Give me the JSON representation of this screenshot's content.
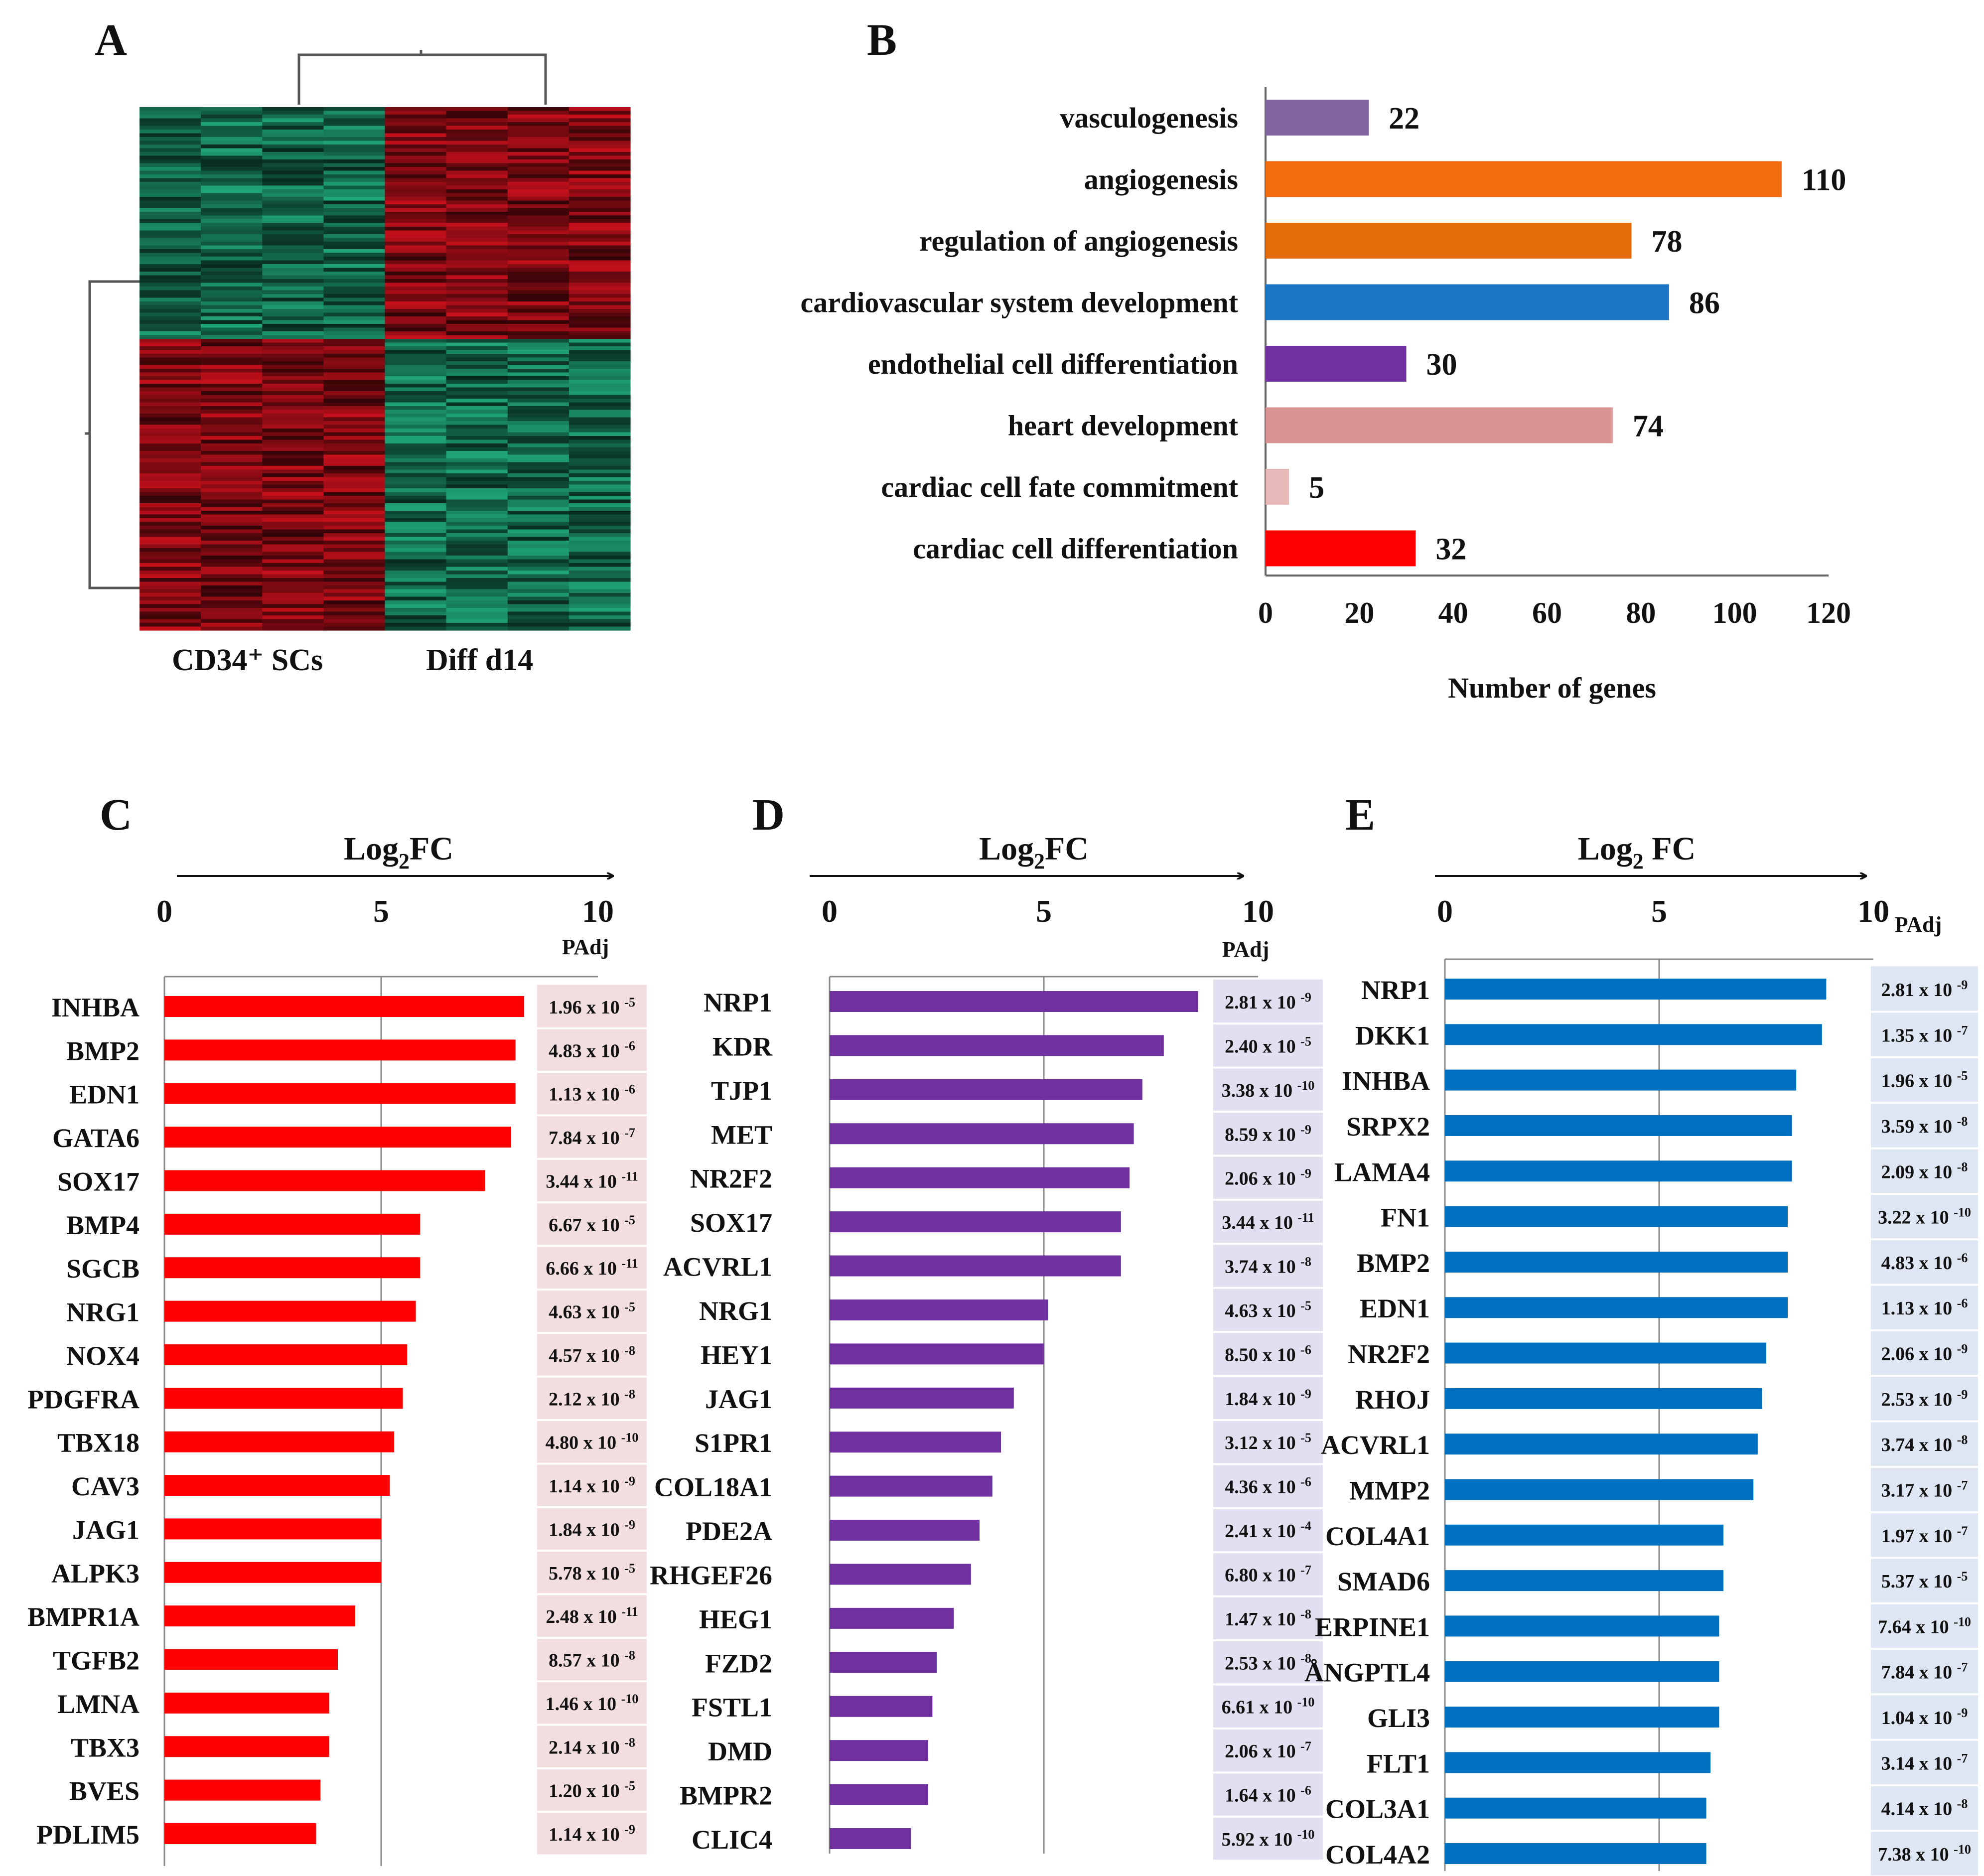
{
  "panels": {
    "A": {
      "label": "A",
      "heatmap": {
        "column_groups": [
          {
            "label": "CD34⁺ SCs",
            "color_top": "green",
            "color_bottom": "red"
          },
          {
            "label": "Diff d14",
            "color_top": "red",
            "color_bottom": "green"
          }
        ],
        "colors": {
          "red": "#c8101c",
          "green": "#1fa678",
          "dark": "#101010"
        }
      }
    },
    "B": {
      "label": "B"
    },
    "C": {
      "label": "C",
      "padj_header": "PAdj",
      "panel_bg": "#f2dede"
    },
    "D": {
      "label": "D",
      "padj_header": "PAdj",
      "panel_bg": "#e4dff0"
    },
    "E": {
      "label": "E",
      "padj_header": "PAdj",
      "panel_bg": "#dde6f2"
    }
  },
  "chart_data": [
    {
      "id": "B",
      "type": "bar",
      "orientation": "horizontal",
      "title": "",
      "categories": [
        "vasculogenesis",
        "angiogenesis",
        "regulation of angiogenesis",
        "cardiovascular system development",
        "endothelial cell differentiation",
        "heart development",
        "cardiac cell fate commitment",
        "cardiac cell differentiation"
      ],
      "values": [
        22,
        110,
        78,
        86,
        30,
        74,
        5,
        32
      ],
      "colors": [
        "#8064a2",
        "#f26b0f",
        "#e36c09",
        "#1a75c4",
        "#7030a0",
        "#d99594",
        "#e6b9b8",
        "#ff0000"
      ],
      "xlabel": "Number of genes",
      "ylabel": "",
      "xlim": [
        0,
        120
      ],
      "ticks": [
        0,
        20,
        40,
        60,
        80,
        100,
        120
      ],
      "data_labels": true
    },
    {
      "id": "C",
      "type": "bar",
      "orientation": "horizontal",
      "xlabel_main": "Log",
      "xlabel_sub": "2",
      "xlabel_tail": "FC",
      "xlim": [
        0,
        10
      ],
      "ticks": [
        0,
        5,
        10
      ],
      "color": "#ff0000",
      "categories": [
        "INHBA",
        "BMP2",
        "EDN1",
        "GATA6",
        "SOX17",
        "BMP4",
        "SGCB",
        "NRG1",
        "NOX4",
        "PDGFRA",
        "TBX18",
        "CAV3",
        "JAG1",
        "ALPK3",
        "BMPR1A",
        "TGFB2",
        "LMNA",
        "TBX3",
        "BVES",
        "PDLIM5"
      ],
      "values": [
        8.3,
        8.1,
        8.1,
        8.0,
        7.4,
        5.9,
        5.9,
        5.8,
        5.6,
        5.5,
        5.3,
        5.2,
        5.0,
        5.0,
        4.4,
        4.0,
        3.8,
        3.8,
        3.6,
        3.5
      ],
      "padj": [
        {
          "m": "1.96",
          "e": "-5"
        },
        {
          "m": "4.83",
          "e": "-6"
        },
        {
          "m": "1.13",
          "e": "-6"
        },
        {
          "m": "7.84",
          "e": "-7"
        },
        {
          "m": "3.44",
          "e": "-11"
        },
        {
          "m": "6.67",
          "e": "-5"
        },
        {
          "m": "6.66",
          "e": "-11"
        },
        {
          "m": "4.63",
          "e": "-5"
        },
        {
          "m": "4.57",
          "e": "-8"
        },
        {
          "m": "2.12",
          "e": "-8"
        },
        {
          "m": "4.80",
          "e": "-10"
        },
        {
          "m": "1.14",
          "e": "-9"
        },
        {
          "m": "1.84",
          "e": "-9"
        },
        {
          "m": "5.78",
          "e": "-5"
        },
        {
          "m": "2.48",
          "e": "-11"
        },
        {
          "m": "8.57",
          "e": "-8"
        },
        {
          "m": "1.46",
          "e": "-10"
        },
        {
          "m": "2.14",
          "e": "-8"
        },
        {
          "m": "1.20",
          "e": "-5"
        },
        {
          "m": "1.14",
          "e": "-9"
        }
      ]
    },
    {
      "id": "D",
      "type": "bar",
      "orientation": "horizontal",
      "xlabel_main": "Log",
      "xlabel_sub": "2",
      "xlabel_tail": "FC",
      "xlim": [
        0,
        10
      ],
      "ticks": [
        0,
        5,
        10
      ],
      "color": "#7030a0",
      "categories": [
        "NRP1",
        "KDR",
        "TJP1",
        "MET",
        "NR2F2",
        "SOX17",
        "ACVRL1",
        "NRG1",
        "HEY1",
        "JAG1",
        "S1PR1",
        "COL18A1",
        "PDE2A",
        "RHGEF26",
        "HEG1",
        "FZD2",
        "FSTL1",
        "DMD",
        "BMPR2",
        "CLIC4"
      ],
      "values": [
        8.6,
        7.8,
        7.3,
        7.1,
        7.0,
        6.8,
        6.8,
        5.1,
        5.0,
        4.3,
        4.0,
        3.8,
        3.5,
        3.3,
        2.9,
        2.5,
        2.4,
        2.3,
        2.3,
        1.9
      ],
      "padj": [
        {
          "m": "2.81",
          "e": "-9"
        },
        {
          "m": "2.40",
          "e": "-5"
        },
        {
          "m": "3.38",
          "e": "-10"
        },
        {
          "m": "8.59",
          "e": "-9"
        },
        {
          "m": "2.06",
          "e": "-9"
        },
        {
          "m": "3.44",
          "e": "-11"
        },
        {
          "m": "3.74",
          "e": "-8"
        },
        {
          "m": "4.63",
          "e": "-5"
        },
        {
          "m": "8.50",
          "e": "-6"
        },
        {
          "m": "1.84",
          "e": "-9"
        },
        {
          "m": "3.12",
          "e": "-5"
        },
        {
          "m": "4.36",
          "e": "-6"
        },
        {
          "m": "2.41",
          "e": "-4"
        },
        {
          "m": "6.80",
          "e": "-7"
        },
        {
          "m": "1.47",
          "e": "-8"
        },
        {
          "m": "2.53",
          "e": "-8"
        },
        {
          "m": "6.61",
          "e": "-10"
        },
        {
          "m": "2.06",
          "e": "-7"
        },
        {
          "m": "1.64",
          "e": "-6"
        },
        {
          "m": "5.92",
          "e": "-10"
        }
      ]
    },
    {
      "id": "E",
      "type": "bar",
      "orientation": "horizontal",
      "xlabel_main": "Log",
      "xlabel_sub": "2",
      "xlabel_tail": " FC",
      "xlim": [
        0,
        10
      ],
      "ticks": [
        0,
        5,
        10
      ],
      "color": "#0070c0",
      "categories": [
        "NRP1",
        "DKK1",
        "INHBA",
        "SRPX2",
        "LAMA4",
        "FN1",
        "BMP2",
        "EDN1",
        "NR2F2",
        "RHOJ",
        "ACVRL1",
        "MMP2",
        "COL4A1",
        "SMAD6",
        "ERPINE1",
        "ÅNGPTL4",
        "GLI3",
        "FLT1",
        "COL3A1",
        "COL4A2"
      ],
      "values": [
        8.9,
        8.8,
        8.2,
        8.1,
        8.1,
        8.0,
        8.0,
        8.0,
        7.5,
        7.4,
        7.3,
        7.2,
        6.5,
        6.5,
        6.4,
        6.4,
        6.4,
        6.2,
        6.1,
        6.1
      ],
      "padj": [
        {
          "m": "2.81",
          "e": "-9"
        },
        {
          "m": "1.35",
          "e": "-7"
        },
        {
          "m": "1.96",
          "e": "-5"
        },
        {
          "m": "3.59",
          "e": "-8"
        },
        {
          "m": "2.09",
          "e": "-8"
        },
        {
          "m": "3.22",
          "e": "-10"
        },
        {
          "m": "4.83",
          "e": "-6"
        },
        {
          "m": "1.13",
          "e": "-6"
        },
        {
          "m": "2.06",
          "e": "-9"
        },
        {
          "m": "2.53",
          "e": "-9"
        },
        {
          "m": "3.74",
          "e": "-8"
        },
        {
          "m": "3.17",
          "e": "-7"
        },
        {
          "m": "1.97",
          "e": "-7"
        },
        {
          "m": "5.37",
          "e": "-5"
        },
        {
          "m": "7.64",
          "e": "-10"
        },
        {
          "m": "7.84",
          "e": "-7"
        },
        {
          "m": "1.04",
          "e": "-9"
        },
        {
          "m": "3.14",
          "e": "-7"
        },
        {
          "m": "4.14",
          "e": "-8"
        },
        {
          "m": "7.38",
          "e": "-10"
        }
      ]
    }
  ]
}
